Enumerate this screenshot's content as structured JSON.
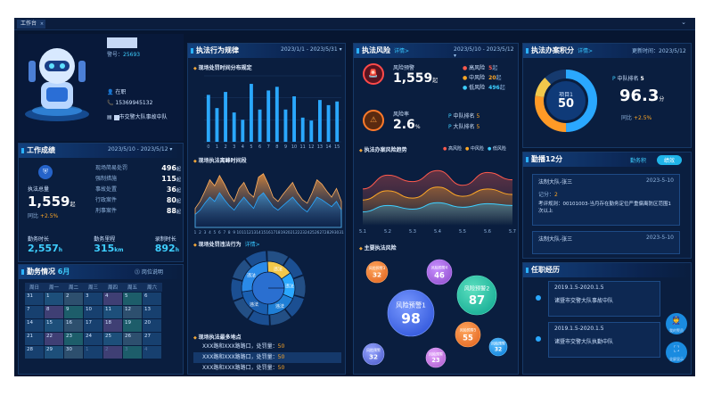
{
  "tab": {
    "label": "工作台",
    "close": "×"
  },
  "profile": {
    "name_masked": "███",
    "badge_label": "警号：",
    "badge": "25693",
    "status": "在职",
    "phone": "15369945132",
    "unit_masked": "██",
    "unit": "市交警大队事故中队"
  },
  "work": {
    "title": "工作成绩",
    "range": "2023/5/10 - 2023/5/12",
    "law_label": "执法总量",
    "law_value": "1,559",
    "law_unit": "起",
    "compare_label": "同比",
    "compare_value": "+2.5",
    "compare_unit": "%",
    "stats": [
      {
        "label": "现场简易处罚",
        "value": "496",
        "unit": "起"
      },
      {
        "label": "强制措施",
        "value": "115",
        "unit": "起"
      },
      {
        "label": "事故处置",
        "value": "36",
        "unit": "起"
      },
      {
        "label": "行政案件",
        "value": "80",
        "unit": "起"
      },
      {
        "label": "刑事案件",
        "value": "88",
        "unit": "起"
      }
    ],
    "duty": [
      {
        "label": "勤务时长",
        "value": "2,557",
        "unit": "h"
      },
      {
        "label": "勤务里程",
        "value": "315",
        "unit": "km"
      },
      {
        "label": "录制时长",
        "value": "892",
        "unit": "h"
      }
    ]
  },
  "calendar": {
    "title": "勤务情况",
    "month": "6月",
    "help": "岗位说明",
    "headers": [
      "周日",
      "周一",
      "周二",
      "周三",
      "周四",
      "周五",
      "周六"
    ],
    "rows": [
      [
        "31",
        "1",
        "2",
        "3",
        "4",
        "5",
        "6"
      ],
      [
        "7",
        "8",
        "9",
        "10",
        "11",
        "12",
        "13"
      ],
      [
        "14",
        "15",
        "16",
        "17",
        "18",
        "19",
        "20"
      ],
      [
        "21",
        "22",
        "23",
        "24",
        "25",
        "26",
        "27"
      ],
      [
        "28",
        "29",
        "30",
        "1",
        "2",
        "3",
        "4"
      ]
    ]
  },
  "behavior": {
    "title": "执法行为规律",
    "range": "2023/1/1 - 2023/5/31",
    "sub1": "现场处罚时间分布规定",
    "sub2": "现场执法离峰时间段",
    "sub3": "现场处罚违法行为",
    "sub3_link": "详情>",
    "sub4": "现场执法最多地点",
    "places": [
      {
        "text": "XXX路和XXX路路口，处罚量：",
        "value": "50"
      },
      {
        "text": "XXX路和XXX路路口，处罚量：",
        "value": "50"
      },
      {
        "text": "XXX路和XXX路路口，处罚量：",
        "value": "50"
      }
    ],
    "sunburst_label": "违法"
  },
  "chart_data": [
    {
      "type": "bar",
      "categories": [
        "0",
        "1",
        "2",
        "3",
        "4",
        "5",
        "6",
        "7",
        "8",
        "9",
        "10",
        "11",
        "12",
        "13",
        "14",
        "15"
      ],
      "values": [
        64,
        46,
        68,
        40,
        30,
        79,
        44,
        70,
        75,
        44,
        62,
        33,
        29,
        57,
        50,
        55
      ],
      "ylim": [
        0,
        90
      ]
    },
    {
      "type": "area",
      "x": [
        "1",
        "2",
        "3",
        "4",
        "5",
        "6",
        "7",
        "8",
        "9",
        "10",
        "11",
        "12",
        "13",
        "14",
        "15",
        "16",
        "17",
        "18",
        "19",
        "20",
        "21",
        "22",
        "23",
        "24",
        "25",
        "26",
        "27",
        "28",
        "29",
        "30",
        "31"
      ],
      "series": [
        {
          "values": [
            22,
            30,
            42,
            55,
            48,
            60,
            50,
            38,
            30,
            45,
            52,
            40,
            35,
            58,
            62,
            50,
            35,
            30,
            38,
            45,
            52,
            40,
            32,
            28,
            40,
            55,
            50,
            42,
            35,
            45,
            30
          ]
        },
        {
          "values": [
            15,
            20,
            28,
            35,
            30,
            40,
            32,
            25,
            20,
            28,
            35,
            28,
            22,
            35,
            40,
            32,
            24,
            20,
            25,
            30,
            35,
            28,
            22,
            18,
            26,
            35,
            32,
            28,
            24,
            30,
            20
          ]
        }
      ]
    },
    {
      "type": "line",
      "x": [
        "5.1",
        "5.2",
        "5.3",
        "5.4",
        "5.5",
        "5.6",
        "5.7"
      ],
      "series": [
        {
          "name": "高风险",
          "values": [
            40,
            55,
            48,
            60,
            44,
            58,
            50
          ]
        },
        {
          "name": "中风险",
          "values": [
            28,
            38,
            30,
            42,
            32,
            40,
            34
          ]
        },
        {
          "name": "低风险",
          "values": [
            15,
            22,
            18,
            25,
            20,
            24,
            22
          ]
        }
      ]
    }
  ],
  "risk": {
    "title": "执法风险",
    "link": "详情>",
    "range": "2023/5/10 - 2023/5/12",
    "warn_label": "风险预警",
    "warn_value": "1,559",
    "warn_unit": "起",
    "levels": [
      {
        "label": "高风险",
        "value": "5",
        "unit": "起"
      },
      {
        "label": "中风险",
        "value": "20",
        "unit": "起"
      },
      {
        "label": "低风险",
        "value": "496",
        "unit": "起"
      }
    ],
    "rate_label": "风险率",
    "rate_value": "2.6",
    "rate_unit": "%",
    "rank1_label": "中队排名",
    "rank1": "5",
    "rank2_label": "大队排名",
    "rank2": "5",
    "trend_title": "执法办案风险趋势",
    "main_title": "主要执法风险",
    "bubbles": [
      {
        "name": "风险预警1",
        "value": "98"
      },
      {
        "name": "风险预警2",
        "value": "87"
      },
      {
        "name": "风险预警5",
        "value": "55"
      },
      {
        "name": "风险预警4",
        "value": "46"
      },
      {
        "name": "风险预警3",
        "value": "32"
      },
      {
        "name": "风险预警",
        "value": "32"
      },
      {
        "name": "风险预警",
        "value": "23"
      },
      {
        "name": "风险预警",
        "value": "32"
      },
      {
        "name": "风险预警",
        "value": "32"
      }
    ]
  },
  "score": {
    "title": "执法办案积分",
    "link": "详情>",
    "updated": "更新时间：2023/5/12",
    "donut_label": "项目1",
    "donut_value": "50",
    "rank_label": "中队排名",
    "rank": "5",
    "score": "96.3",
    "score_unit": "分",
    "compare_label": "同比",
    "compare_value": "+2.5",
    "compare_unit": "%"
  },
  "duty_panel": {
    "title": "勤播12分",
    "tab1": "勤务积",
    "tab2": "绩效",
    "card1": {
      "name": "法制大队-张三",
      "date": "2023-5-10",
      "score_label": "记分：",
      "score": "2",
      "desc": "考评规则：00101003-当月存在勤务定位严重偏离防区范围1次以上"
    },
    "card2": {
      "name": "法制大队-张三",
      "date": "2023-5-10"
    }
  },
  "career": {
    "title": "任职经历",
    "items": [
      {
        "period": "2019.1.5-2020.1.5",
        "unit": "诸暨市交警大队事故中队"
      },
      {
        "period": "2019.1.5-2020.1.5",
        "unit": "诸暨市交警大队执勤中队"
      }
    ],
    "btn1": "我的警员",
    "btn2": "全屏显示"
  }
}
